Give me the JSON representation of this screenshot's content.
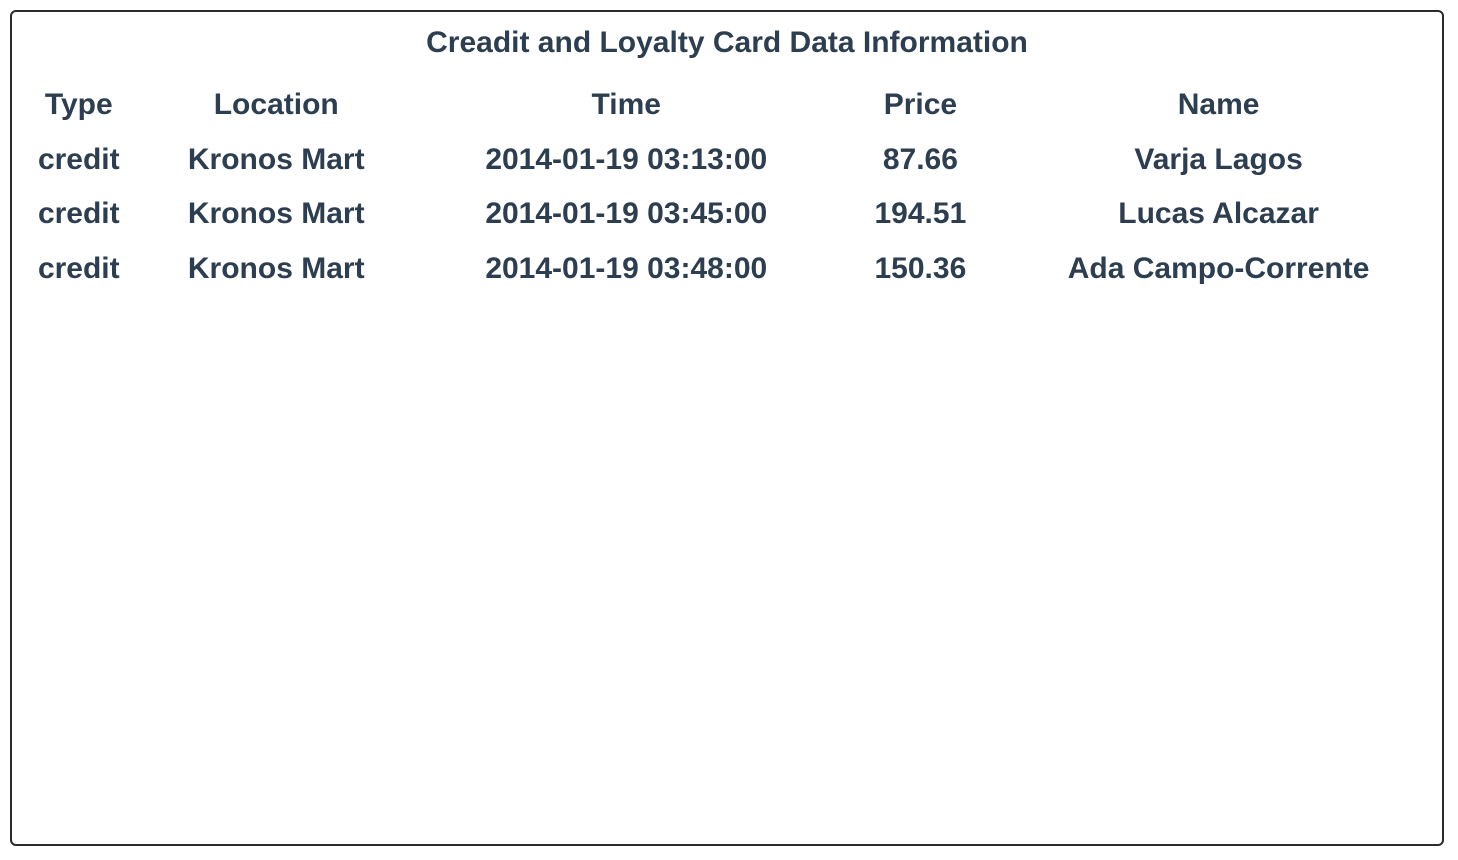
{
  "title": "Creadit and Loyalty Card Data Information",
  "columns": [
    "Type",
    "Location",
    "Time",
    "Price",
    "Name"
  ],
  "rows": [
    [
      "credit",
      "Kronos Mart",
      "2014-01-19 03:13:00",
      "87.66",
      "Varja Lagos"
    ],
    [
      "credit",
      "Kronos Mart",
      "2014-01-19 03:45:00",
      "194.51",
      "Lucas Alcazar"
    ],
    [
      "credit",
      "Kronos Mart",
      "2014-01-19 03:48:00",
      "150.36",
      "Ada Campo-Corrente"
    ]
  ],
  "colors": {
    "text": "#2c3e50",
    "border": "#2b2b2b",
    "background": "#ffffff"
  }
}
